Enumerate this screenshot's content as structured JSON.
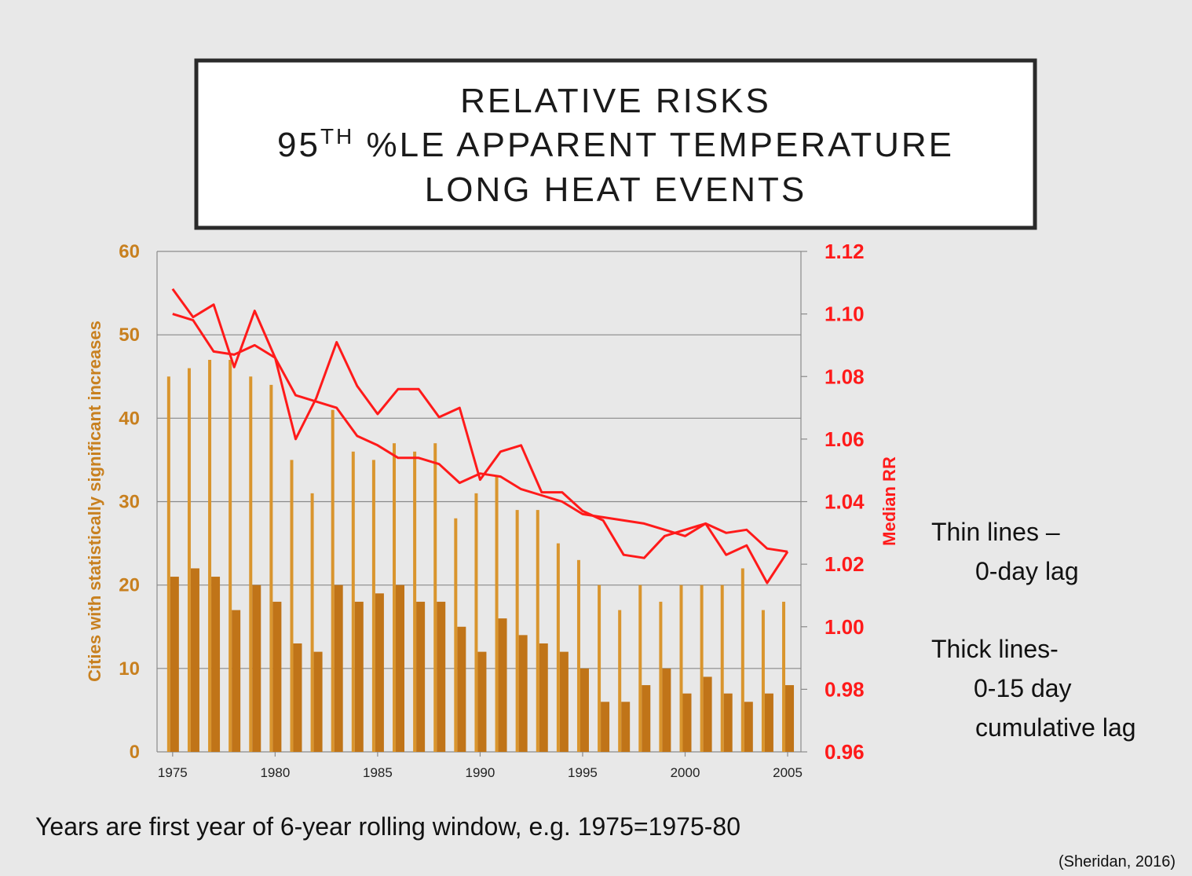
{
  "chart_data": {
    "type": "bar",
    "title": [
      "RELATIVE RISKS",
      {
        "main": "95",
        "sup": "TH",
        "rest": " %LE APPARENT TEMPERATURE"
      },
      "LONG HEAT EVENTS"
    ],
    "ylabel": "Cities with statistically significant increases",
    "y2label": "Median RR",
    "x": [
      1975,
      1976,
      1977,
      1978,
      1979,
      1980,
      1981,
      1982,
      1983,
      1984,
      1985,
      1986,
      1987,
      1988,
      1989,
      1990,
      1991,
      1992,
      1993,
      1994,
      1995,
      1996,
      1997,
      1998,
      1999,
      2000,
      2001,
      2002,
      2003,
      2004,
      2005
    ],
    "xlim": [
      1974.24,
      2005.65
    ],
    "xticks": [
      1975,
      1980,
      1985,
      1990,
      1995,
      2000,
      2005
    ],
    "ylim": [
      0,
      60
    ],
    "yticks": [
      0,
      10,
      20,
      30,
      40,
      50,
      60
    ],
    "y2lim": [
      0.96,
      1.12
    ],
    "y2ticks": [
      0.96,
      0.98,
      {
        "value": 1.0,
        "label": "1.00"
      },
      1.02,
      1.04,
      1.06,
      1.08,
      {
        "value": 1.1,
        "label": "1.10"
      },
      1.12
    ],
    "grid": true,
    "series": [
      {
        "type": "bar",
        "color": "#d9952e",
        "values": [
          45,
          46,
          47,
          47,
          45,
          44,
          35,
          31,
          41,
          36,
          35,
          37,
          36,
          37,
          28,
          31,
          33,
          29,
          29,
          25,
          23,
          20,
          17,
          20,
          18,
          20,
          20,
          20,
          22,
          17,
          18
        ]
      },
      {
        "type": "bar",
        "color": "#c07418",
        "values": [
          21,
          22,
          21,
          17,
          20,
          18,
          13,
          12,
          20,
          18,
          19,
          20,
          18,
          18,
          15,
          12,
          16,
          14,
          13,
          12,
          10,
          6,
          6,
          8,
          10,
          7,
          9,
          7,
          6,
          7,
          8
        ]
      },
      {
        "type": "line",
        "axis": "y2",
        "color": "#ff1a1a",
        "values": [
          1.108,
          1.099,
          1.103,
          1.083,
          1.101,
          1.086,
          1.06,
          1.073,
          1.091,
          1.077,
          1.068,
          1.076,
          1.076,
          1.067,
          1.07,
          1.047,
          1.056,
          1.058,
          1.043,
          1.043,
          1.037,
          1.034,
          1.023,
          1.022,
          1.029,
          1.031,
          1.033,
          1.023,
          1.026,
          1.014,
          1.024
        ]
      },
      {
        "type": "line",
        "axis": "y2",
        "color": "#ff1a1a",
        "values": [
          1.1,
          1.098,
          1.088,
          1.087,
          1.09,
          1.086,
          1.074,
          1.072,
          1.07,
          1.061,
          1.058,
          1.054,
          1.054,
          1.052,
          1.046,
          1.049,
          1.048,
          1.044,
          1.042,
          1.04,
          1.036,
          1.035,
          1.034,
          1.033,
          1.031,
          1.029,
          1.033,
          1.03,
          1.031,
          1.025,
          1.024
        ]
      }
    ],
    "annotations": [
      "Thin lines –",
      "0-day lag",
      "Thick lines-",
      "0-15 day",
      "cumulative lag"
    ],
    "footnote": "Years are first year of 6-year rolling window, e.g. 1975=1975-80",
    "source": "(Sheridan, 2016)"
  }
}
